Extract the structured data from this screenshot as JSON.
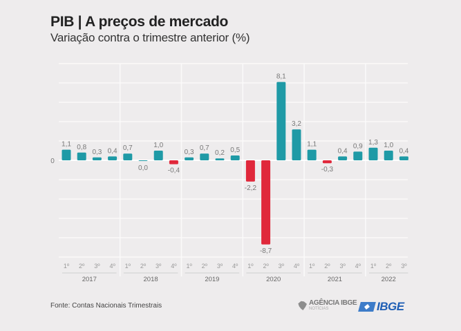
{
  "header": {
    "title": "PIB | A preços de mercado",
    "subtitle": "Variação contra o trimestre anterior (%)"
  },
  "footer": {
    "source": "Fonte: Contas Nacionais Trimestrais",
    "logo_agencia_line1": "AGÊNCIA IBGE",
    "logo_agencia_line2": "NOTÍCIAS",
    "logo_ibge": "IBGE"
  },
  "colors": {
    "positive": "#1f9aa6",
    "negative": "#e0283b",
    "background": "#eeeced",
    "label": "#777777"
  },
  "chart_data": {
    "type": "bar",
    "title": "PIB | A preços de mercado",
    "subtitle": "Variação contra o trimestre anterior (%)",
    "xlabel": "",
    "ylabel": "",
    "ylim": [
      -10,
      10
    ],
    "zero_label": "0",
    "grid": true,
    "groups": [
      {
        "year": "2017",
        "quarters": [
          "1º",
          "2º",
          "3º",
          "4º"
        ],
        "values": [
          1.1,
          0.8,
          0.3,
          0.4
        ],
        "labels": [
          "1,1",
          "0,8",
          "0,3",
          "0,4"
        ]
      },
      {
        "year": "2018",
        "quarters": [
          "1º",
          "2º",
          "3º",
          "4º"
        ],
        "values": [
          0.7,
          0.0,
          1.0,
          -0.4
        ],
        "labels": [
          "0,7",
          "0,0",
          "1,0",
          "-0,4"
        ]
      },
      {
        "year": "2019",
        "quarters": [
          "1º",
          "2º",
          "3º",
          "4º"
        ],
        "values": [
          0.3,
          0.7,
          0.2,
          0.5
        ],
        "labels": [
          "0,3",
          "0,7",
          "0,2",
          "0,5"
        ]
      },
      {
        "year": "2020",
        "quarters": [
          "1º",
          "2º",
          "3º",
          "4º"
        ],
        "values": [
          -2.2,
          -8.7,
          8.1,
          3.2
        ],
        "labels": [
          "-2,2",
          "-8,7",
          "8,1",
          "3,2"
        ]
      },
      {
        "year": "2021",
        "quarters": [
          "1º",
          "2º",
          "3º",
          "4º"
        ],
        "values": [
          1.1,
          -0.3,
          0.4,
          0.9
        ],
        "labels": [
          "1,1",
          "-0,3",
          "0,4",
          "0,9"
        ]
      },
      {
        "year": "2022",
        "quarters": [
          "1º",
          "2º",
          "3º"
        ],
        "values": [
          1.3,
          1.0,
          0.4
        ],
        "labels": [
          "1,3",
          "1,0",
          "0,4"
        ]
      }
    ]
  }
}
